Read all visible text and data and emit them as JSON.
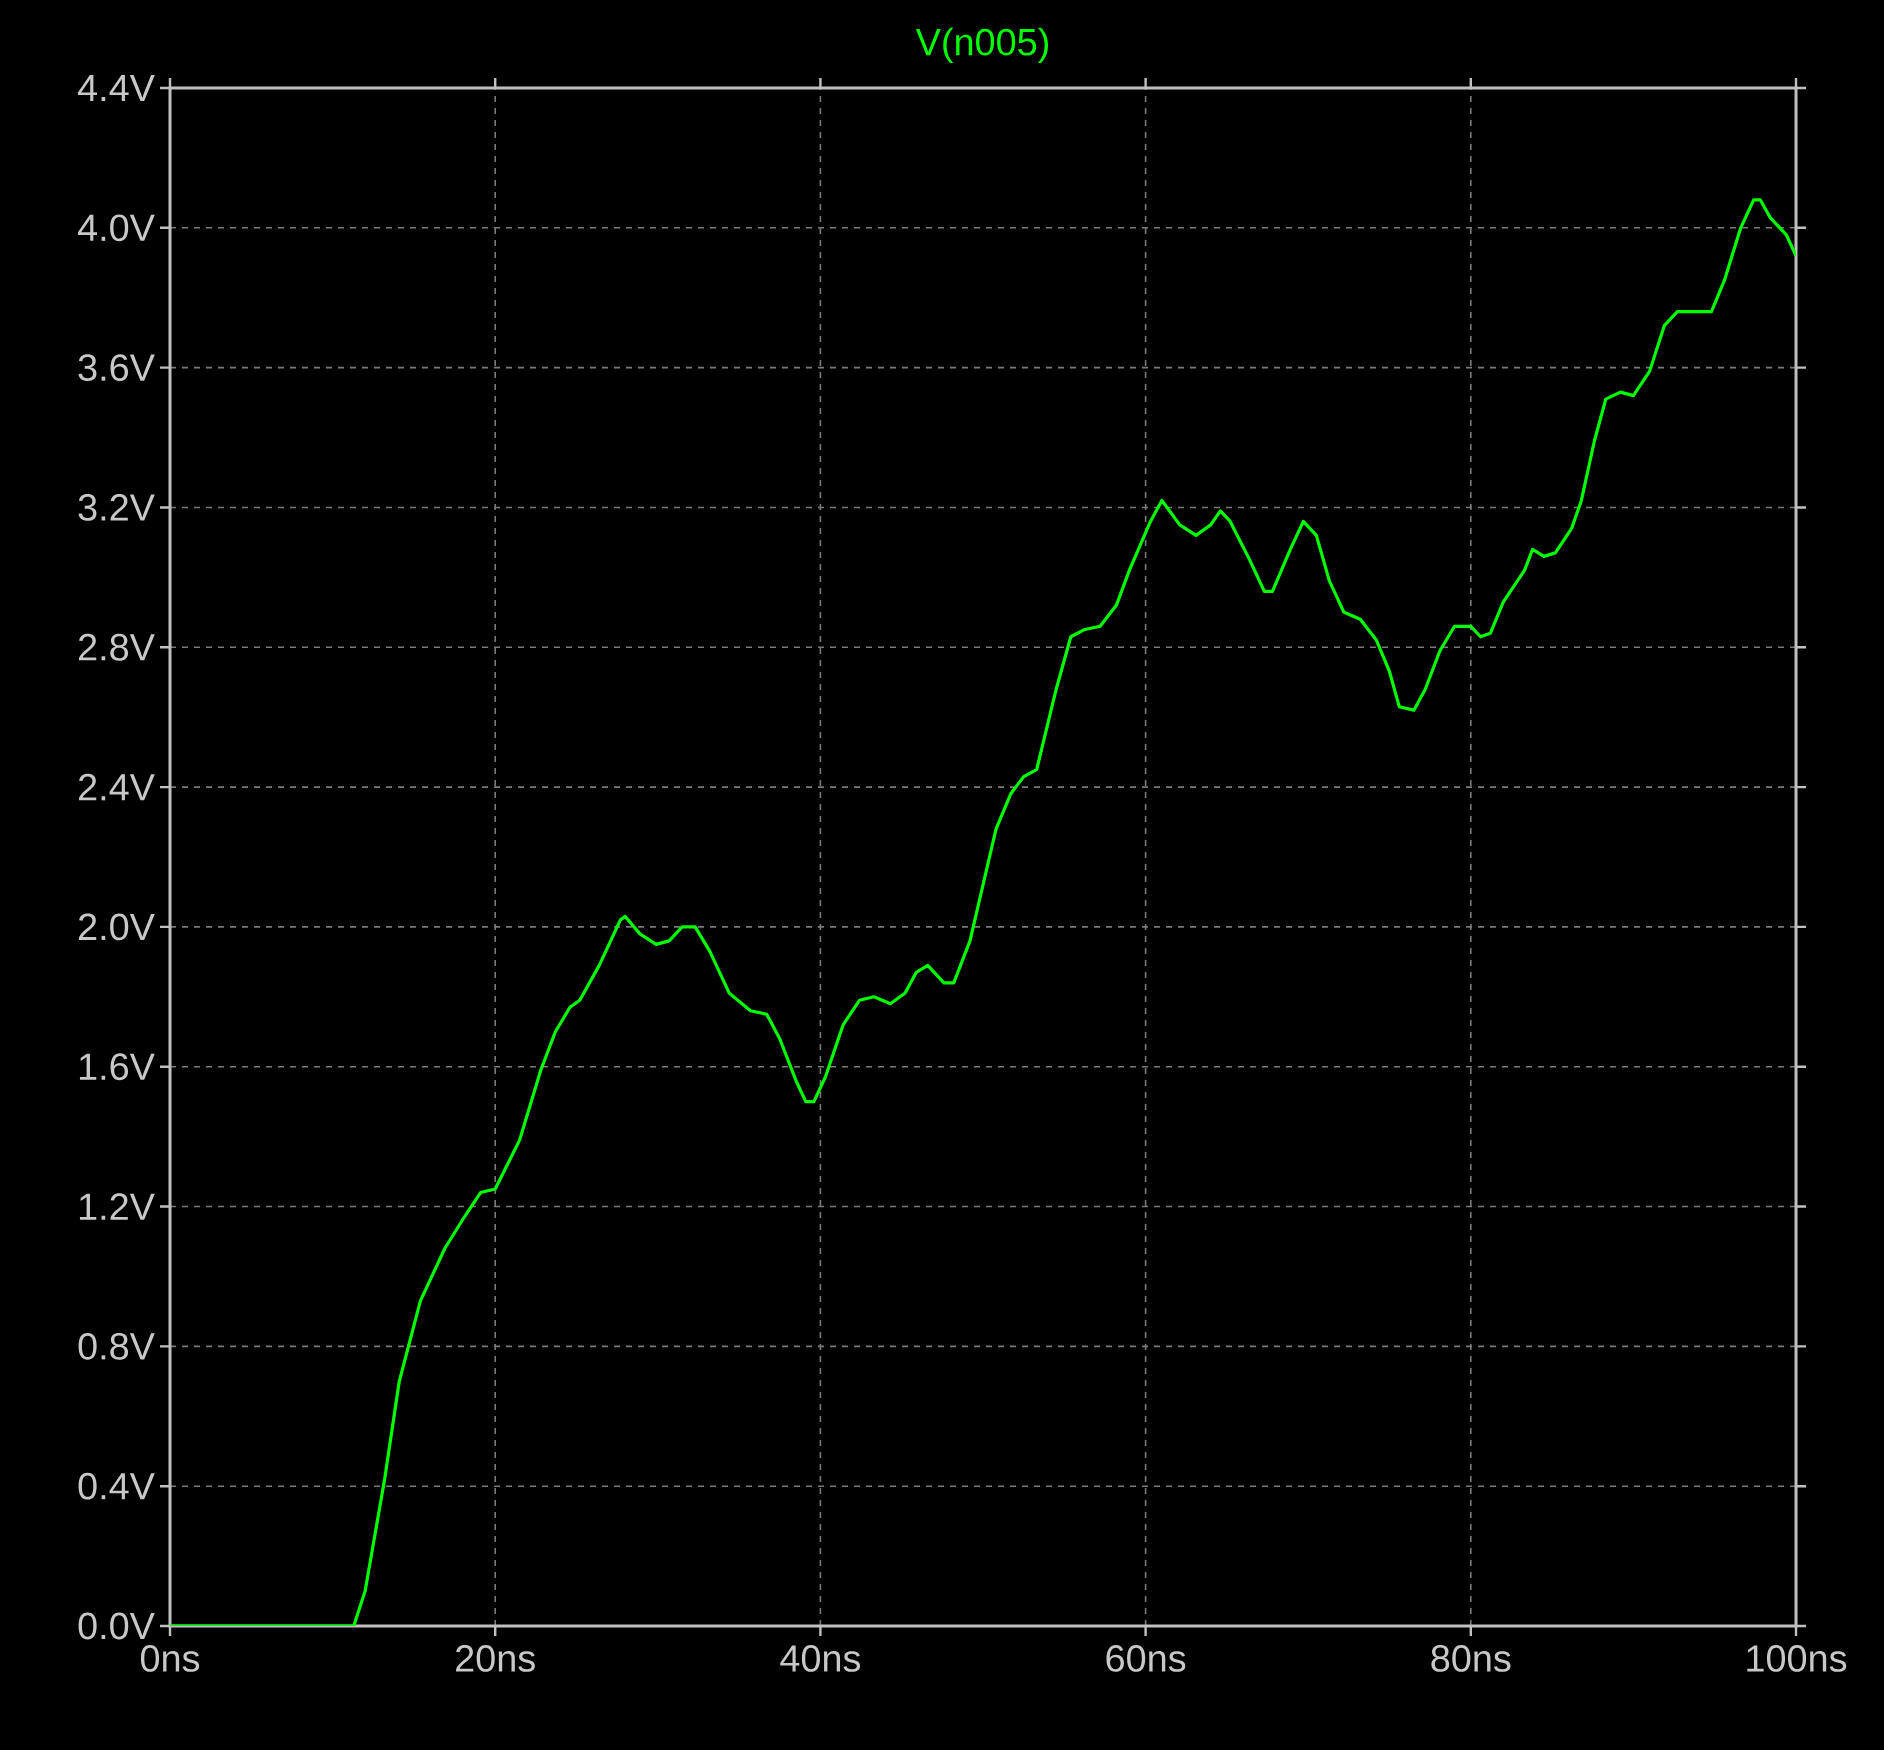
{
  "chart_data": {
    "type": "line",
    "title": "V(n005)",
    "color": "#00ff00",
    "grid": true,
    "xlim": [
      0,
      100
    ],
    "ylim": [
      0,
      4.4
    ],
    "xticks": [
      {
        "value": 0,
        "label": "0ns"
      },
      {
        "value": 20,
        "label": "20ns"
      },
      {
        "value": 40,
        "label": "40ns"
      },
      {
        "value": 60,
        "label": "60ns"
      },
      {
        "value": 80,
        "label": "80ns"
      },
      {
        "value": 100,
        "label": "100ns"
      }
    ],
    "yticks": [
      {
        "value": 0,
        "label": "0.0V"
      },
      {
        "value": 0.4,
        "label": "0.4V"
      },
      {
        "value": 0.8,
        "label": "0.8V"
      },
      {
        "value": 1.2,
        "label": "1.2V"
      },
      {
        "value": 1.6,
        "label": "1.6V"
      },
      {
        "value": 2.0,
        "label": "2.0V"
      },
      {
        "value": 2.4,
        "label": "2.4V"
      },
      {
        "value": 2.8,
        "label": "2.8V"
      },
      {
        "value": 3.2,
        "label": "3.2V"
      },
      {
        "value": 3.6,
        "label": "3.6V"
      },
      {
        "value": 4.0,
        "label": "4.0V"
      },
      {
        "value": 4.4,
        "label": "4.4V"
      }
    ],
    "x": [
      0,
      11.3,
      12.0,
      13.2,
      14.1,
      15.4,
      16.9,
      18.1,
      19.1,
      20.0,
      21.5,
      22.8,
      23.7,
      24.6,
      25.2,
      26.4,
      27.7,
      28.0,
      28.9,
      29.9,
      30.7,
      31.5,
      32.3,
      33.2,
      34.4,
      35.7,
      36.7,
      37.5,
      38.5,
      39.1,
      39.6,
      40.3,
      41.4,
      42.4,
      43.3,
      44.3,
      45.2,
      45.9,
      46.6,
      47.6,
      48.2,
      49.2,
      49.8,
      50.8,
      51.7,
      52.5,
      53.3,
      54.5,
      55.4,
      56.2,
      57.2,
      58.2,
      59.0,
      60.3,
      61.0,
      62.1,
      63.1,
      64.0,
      64.6,
      65.2,
      66.4,
      67.3,
      67.8,
      68.9,
      69.7,
      70.5,
      71.3,
      72.2,
      73.2,
      74.2,
      75.0,
      75.6,
      76.5,
      77.2,
      78.1,
      79.0,
      80.0,
      80.6,
      81.2,
      82.0,
      83.3,
      83.8,
      84.5,
      85.2,
      86.2,
      86.8,
      87.6,
      88.3,
      89.2,
      90.0,
      91.0,
      91.9,
      92.7,
      94.3,
      94.8,
      95.6,
      96.6,
      97.4,
      97.8,
      98.4,
      99.4,
      100
    ],
    "values": [
      0,
      0,
      0.1,
      0.42,
      0.7,
      0.93,
      1.08,
      1.17,
      1.24,
      1.25,
      1.39,
      1.59,
      1.7,
      1.77,
      1.79,
      1.89,
      2.02,
      2.03,
      1.98,
      1.95,
      1.96,
      2.0,
      2.0,
      1.93,
      1.81,
      1.76,
      1.75,
      1.68,
      1.56,
      1.5,
      1.5,
      1.57,
      1.72,
      1.79,
      1.8,
      1.78,
      1.81,
      1.87,
      1.89,
      1.84,
      1.84,
      1.96,
      2.08,
      2.28,
      2.38,
      2.43,
      2.45,
      2.68,
      2.83,
      2.85,
      2.86,
      2.92,
      3.02,
      3.16,
      3.22,
      3.15,
      3.12,
      3.15,
      3.19,
      3.16,
      3.05,
      2.96,
      2.96,
      3.08,
      3.16,
      3.12,
      2.99,
      2.9,
      2.88,
      2.82,
      2.73,
      2.63,
      2.62,
      2.68,
      2.79,
      2.86,
      2.86,
      2.83,
      2.84,
      2.93,
      3.02,
      3.08,
      3.06,
      3.07,
      3.14,
      3.22,
      3.39,
      3.51,
      3.53,
      3.52,
      3.59,
      3.72,
      3.76,
      3.76,
      3.76,
      3.85,
      4.0,
      4.08,
      4.08,
      4.03,
      3.98,
      3.92
    ]
  }
}
